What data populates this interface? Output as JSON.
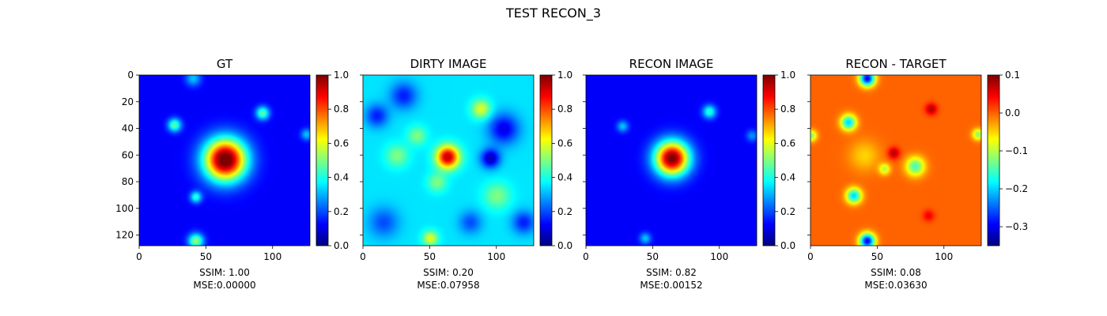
{
  "figure": {
    "suptitle": "TEST RECON_3"
  },
  "chart_data": [
    {
      "type": "heatmap",
      "title": "GT",
      "x_ticks": [
        0,
        50,
        100
      ],
      "y_ticks": [
        0,
        20,
        40,
        60,
        80,
        100,
        120
      ],
      "xlim": [
        0,
        128
      ],
      "ylim": [
        128,
        0
      ],
      "colormap": "jet",
      "colorbar": {
        "min": 0.0,
        "max": 1.0,
        "ticks": [
          "0.0",
          "0.2",
          "0.4",
          "0.6",
          "0.8",
          "1.0"
        ]
      },
      "caption_ssim": "SSIM: 1.00",
      "caption_mse": "MSE:0.00000",
      "background_level": 0.12,
      "blobs": [
        {
          "x": 64,
          "y": 63,
          "sigma": 11,
          "value": 0.95
        },
        {
          "x": 26,
          "y": 37,
          "sigma": 3.5,
          "value": 0.35
        },
        {
          "x": 92,
          "y": 28,
          "sigma": 3.5,
          "value": 0.35
        },
        {
          "x": 42,
          "y": 91,
          "sigma": 3,
          "value": 0.3
        },
        {
          "x": 42,
          "y": 124,
          "sigma": 4,
          "value": 0.4
        },
        {
          "x": 40,
          "y": 2,
          "sigma": 4,
          "value": 0.2
        },
        {
          "x": 125,
          "y": 44,
          "sigma": 3,
          "value": 0.2
        }
      ]
    },
    {
      "type": "heatmap",
      "title": "DIRTY IMAGE",
      "x_ticks": [
        0,
        50,
        100
      ],
      "y_ticks": [
        0,
        20,
        40,
        60,
        80,
        100,
        120
      ],
      "xlim": [
        0,
        128
      ],
      "ylim": [
        128,
        0
      ],
      "colormap": "jet",
      "colorbar": {
        "min": 0.0,
        "max": 1.0,
        "ticks": [
          "0.0",
          "0.2",
          "0.4",
          "0.6",
          "0.8",
          "1.0"
        ]
      },
      "caption_ssim": "SSIM: 0.20",
      "caption_mse": "MSE:0.07958",
      "background_level": 0.35,
      "blobs": [
        {
          "x": 63,
          "y": 61,
          "sigma": 6,
          "value": 0.6
        },
        {
          "x": 88,
          "y": 25,
          "sigma": 5,
          "value": 0.25
        },
        {
          "x": 10,
          "y": 30,
          "sigma": 6,
          "value": -0.2
        },
        {
          "x": 30,
          "y": 15,
          "sigma": 7,
          "value": -0.2
        },
        {
          "x": 105,
          "y": 40,
          "sigma": 8,
          "value": -0.25
        },
        {
          "x": 95,
          "y": 62,
          "sigma": 5,
          "value": -0.3
        },
        {
          "x": 25,
          "y": 60,
          "sigma": 6,
          "value": 0.15
        },
        {
          "x": 100,
          "y": 90,
          "sigma": 7,
          "value": 0.15
        },
        {
          "x": 15,
          "y": 110,
          "sigma": 8,
          "value": -0.15
        },
        {
          "x": 50,
          "y": 122,
          "sigma": 4,
          "value": 0.25
        },
        {
          "x": 80,
          "y": 110,
          "sigma": 6,
          "value": -0.15
        },
        {
          "x": 120,
          "y": 110,
          "sigma": 6,
          "value": -0.2
        },
        {
          "x": 55,
          "y": 80,
          "sigma": 5,
          "value": 0.15
        },
        {
          "x": 40,
          "y": 45,
          "sigma": 5,
          "value": 0.15
        }
      ]
    },
    {
      "type": "heatmap",
      "title": "RECON IMAGE",
      "x_ticks": [
        0,
        50,
        100
      ],
      "y_ticks": [
        0,
        20,
        40,
        60,
        80,
        100,
        120
      ],
      "xlim": [
        0,
        128
      ],
      "ylim": [
        128,
        0
      ],
      "colormap": "jet",
      "colorbar": {
        "min": 0.0,
        "max": 1.0,
        "ticks": [
          "0.0",
          "0.2",
          "0.4",
          "0.6",
          "0.8",
          "1.0"
        ]
      },
      "caption_ssim": "SSIM: 0.82",
      "caption_mse": "MSE:0.00152",
      "background_level": 0.12,
      "blobs": [
        {
          "x": 64,
          "y": 62,
          "sigma": 9,
          "value": 0.9
        },
        {
          "x": 92,
          "y": 27,
          "sigma": 3.5,
          "value": 0.3
        },
        {
          "x": 27,
          "y": 38,
          "sigma": 3,
          "value": 0.2
        },
        {
          "x": 44,
          "y": 122,
          "sigma": 3,
          "value": 0.2
        },
        {
          "x": 124,
          "y": 45,
          "sigma": 3,
          "value": 0.15
        }
      ]
    },
    {
      "type": "heatmap",
      "title": "RECON - TARGET",
      "x_ticks": [
        0,
        50,
        100
      ],
      "y_ticks": [
        0,
        20,
        40,
        60,
        80,
        100,
        120
      ],
      "xlim": [
        0,
        128
      ],
      "ylim": [
        128,
        0
      ],
      "colormap": "jet",
      "colorbar": {
        "min": -0.35,
        "max": 0.1,
        "ticks": [
          "0.1",
          "0.0",
          "−0.1",
          "−0.2",
          "−0.3"
        ]
      },
      "caption_ssim": "SSIM: 0.08",
      "caption_mse": "MSE:0.03630",
      "background_level": 0.0,
      "blobs": [
        {
          "x": 42,
          "y": 2,
          "sigma": 4,
          "value": -0.3
        },
        {
          "x": 28,
          "y": 35,
          "sigma": 4,
          "value": -0.2
        },
        {
          "x": 32,
          "y": 90,
          "sigma": 4,
          "value": -0.2
        },
        {
          "x": 42,
          "y": 124,
          "sigma": 4,
          "value": -0.3
        },
        {
          "x": 125,
          "y": 44,
          "sigma": 3,
          "value": -0.12
        },
        {
          "x": 0,
          "y": 45,
          "sigma": 3,
          "value": -0.12
        },
        {
          "x": 78,
          "y": 68,
          "sigma": 5,
          "value": -0.15
        },
        {
          "x": 55,
          "y": 70,
          "sigma": 3,
          "value": -0.1
        },
        {
          "x": 62,
          "y": 58,
          "sigma": 3,
          "value": 0.08
        },
        {
          "x": 90,
          "y": 25,
          "sigma": 3,
          "value": 0.08
        },
        {
          "x": 88,
          "y": 105,
          "sigma": 3,
          "value": 0.05
        },
        {
          "x": 40,
          "y": 60,
          "sigma": 8,
          "value": -0.05
        }
      ]
    }
  ]
}
